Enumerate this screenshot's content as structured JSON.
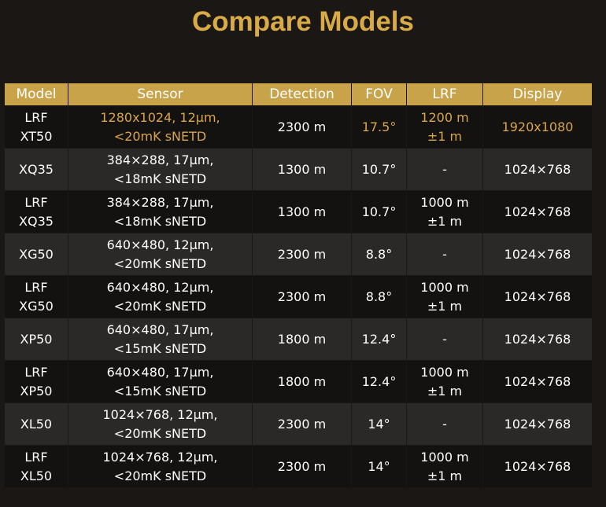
{
  "title": "Compare Models",
  "table": {
    "headers": [
      "Model",
      "Sensor",
      "Detection",
      "FOV",
      "LRF",
      "Display"
    ],
    "rows": [
      [
        "LRF\nXT50",
        "1280x1024, 12µm,\n<20mK sNETD",
        "2300 m",
        "17.5°",
        "1200 m\n±1 m",
        "1920x1080"
      ],
      [
        "XQ35",
        "384×288, 17µm,\n<18mK sNETD",
        "1300 m",
        "10.7°",
        "-",
        "1024×768"
      ],
      [
        "LRF\nXQ35",
        "384×288, 17µm,\n<18mK sNETD",
        "1300 m",
        "10.7°",
        "1000 m\n±1 m",
        "1024×768"
      ],
      [
        "XG50",
        "640×480, 12µm,\n<20mK sNETD",
        "2300 m",
        "8.8°",
        "-",
        "1024×768"
      ],
      [
        "LRF\nXG50",
        "640×480, 12µm,\n<20mK sNETD",
        "2300 m",
        "8.8°",
        "1000 m\n±1 m",
        "1024×768"
      ],
      [
        "XP50",
        "640×480, 17µm,\n<15mK sNETD",
        "1800 m",
        "12.4°",
        "-",
        "1024×768"
      ],
      [
        "LRF\nXP50",
        "640×480, 17µm,\n<15mK sNETD",
        "1800 m",
        "12.4°",
        "1000 m\n±1 m",
        "1024×768"
      ],
      [
        "XL50",
        "1024×768, 12µm,\n<20mK sNETD",
        "2300 m",
        "14°",
        "-",
        "1024×768"
      ],
      [
        "LRF\nXL50",
        "1024×768, 12µm,\n<20mK sNETD",
        "2300 m",
        "14°",
        "1000 m\n±1 m",
        "1024×768"
      ]
    ]
  }
}
